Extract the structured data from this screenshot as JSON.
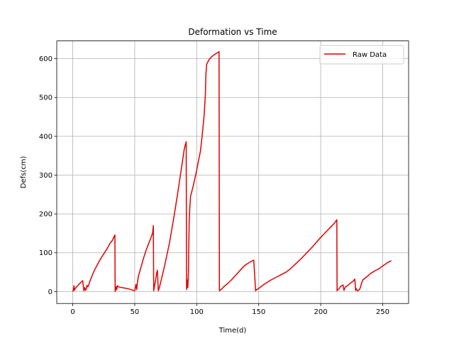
{
  "chart_data": {
    "type": "line",
    "title": "Deformation vs Time",
    "xlabel": "Time(d)",
    "ylabel": "Defs(cm)",
    "xlim": [
      -12.9,
      270.9
    ],
    "ylim": [
      -30.8,
      645.8
    ],
    "xticks": [
      0,
      50,
      100,
      150,
      200,
      250
    ],
    "yticks": [
      0,
      100,
      200,
      300,
      400,
      500,
      600
    ],
    "grid": true,
    "legend": {
      "position": "upper right"
    },
    "series": [
      {
        "name": "Raw Data",
        "color": "#e00000",
        "x": [
          0,
          0.6,
          1.0,
          1.3,
          2,
          4,
          6,
          8,
          9,
          9.6,
          10.4,
          11,
          11.5,
          12.2,
          13,
          14,
          16,
          18,
          20,
          22,
          24,
          26,
          28,
          30,
          32,
          34,
          34.2,
          35,
          35.5,
          36,
          37,
          40,
          45,
          50,
          51,
          51.6,
          52,
          53,
          55,
          57,
          59,
          61,
          63,
          64.5,
          65,
          65.3,
          66,
          66.8,
          67.5,
          68.3,
          69,
          70,
          72,
          74,
          76,
          78,
          80,
          82,
          84,
          86,
          88,
          90,
          91.5,
          91.8,
          92.2,
          92.8,
          93.3,
          93.9,
          94.5,
          95,
          97,
          99,
          101,
          103,
          104,
          105,
          106,
          107,
          107.4,
          107.8,
          108,
          109,
          110,
          112,
          114,
          116,
          118,
          118.3,
          120,
          122,
          124,
          126,
          128,
          130,
          132,
          134,
          136,
          138,
          140,
          142,
          144,
          146,
          147.5,
          148,
          150,
          152,
          154,
          156,
          158,
          160,
          163,
          166,
          169,
          172,
          175,
          178,
          181,
          184,
          187,
          190,
          193,
          196,
          199,
          202,
          205,
          208,
          211,
          213,
          213.2,
          214,
          215,
          216,
          217,
          218,
          218.8,
          219.3,
          220,
          222,
          224,
          226,
          227.5,
          228.2,
          228.6,
          229.5,
          231,
          232,
          233,
          234,
          236,
          238,
          240,
          242,
          244,
          246,
          248,
          250,
          252,
          254,
          256,
          257
        ],
        "y": [
          0,
          5,
          15,
          3,
          8,
          15,
          22,
          28,
          2,
          10,
          3,
          8,
          16,
          12,
          18,
          28,
          44,
          58,
          70,
          82,
          92,
          102,
          112,
          124,
          132,
          146,
          0,
          12,
          5,
          15,
          12,
          10,
          7,
          2,
          18,
          5,
          20,
          40,
          62,
          85,
          105,
          122,
          138,
          152,
          170,
          2,
          15,
          28,
          45,
          55,
          2,
          12,
          38,
          65,
          95,
          125,
          162,
          200,
          240,
          282,
          325,
          368,
          386,
          5,
          30,
          10,
          48,
          180,
          220,
          245,
          270,
          298,
          330,
          362,
          390,
          422,
          455,
          510,
          560,
          575,
          585,
          592,
          598,
          605,
          610,
          614,
          618,
          2,
          6,
          13,
          18,
          24,
          30,
          37,
          44,
          51,
          58,
          65,
          70,
          74,
          78,
          81,
          2,
          4,
          8,
          13,
          18,
          22,
          26,
          30,
          35,
          40,
          45,
          50,
          57,
          66,
          75,
          84,
          94,
          104,
          114,
          125,
          136,
          146,
          156,
          166,
          176,
          185,
          2,
          5,
          8,
          13,
          15,
          17,
          3,
          8,
          12,
          16,
          22,
          26,
          32,
          3,
          8,
          2,
          4,
          10,
          22,
          30,
          35,
          40,
          46,
          50,
          54,
          57,
          61,
          66,
          70,
          75,
          78,
          79
        ]
      }
    ]
  }
}
